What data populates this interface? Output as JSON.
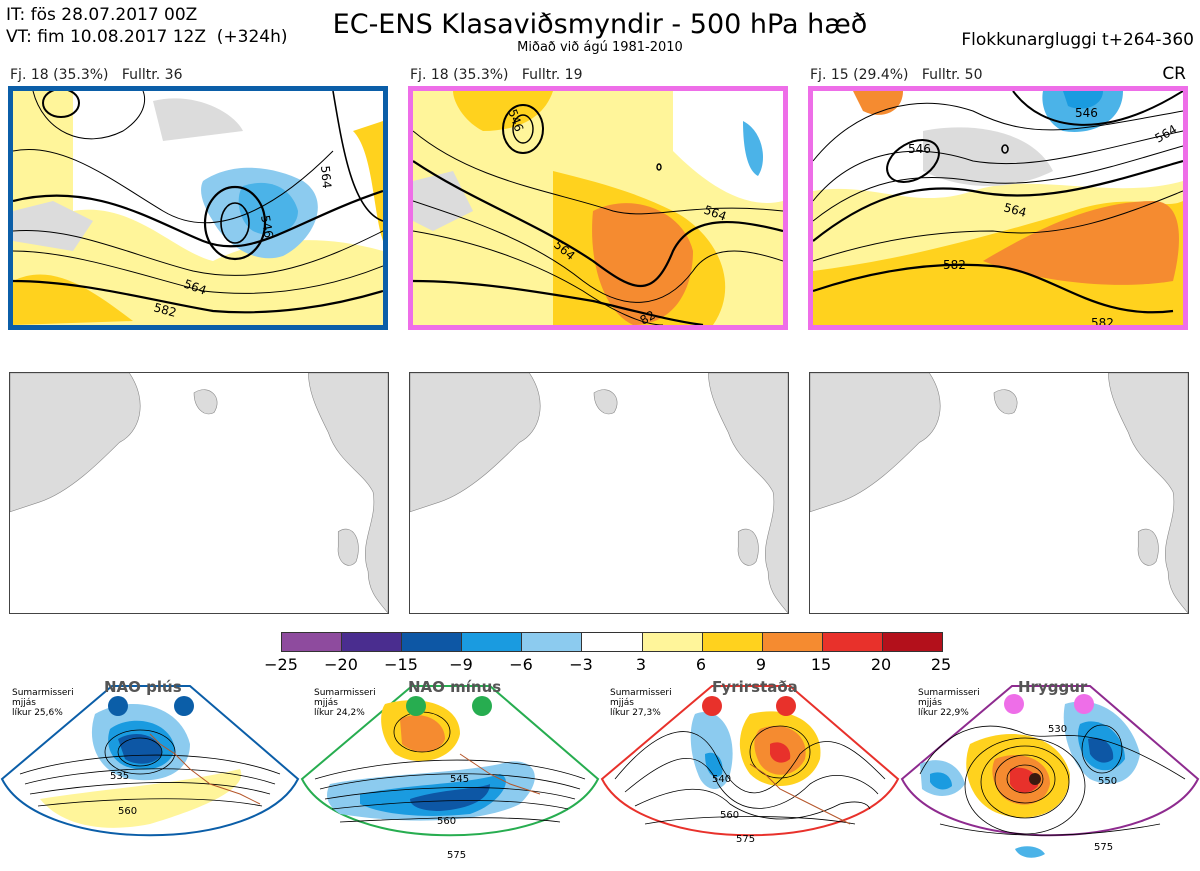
{
  "header": {
    "init_time": "IT: fös 28.07.2017 00Z",
    "valid_time": "VT: fim 10.08.2017 12Z  (+324h)",
    "title": "EC-ENS Klasaviðsmyndir - 500 hPa hæð",
    "subtitle": "Miðað við ágú 1981-2010",
    "window": "Flokkunargluggi t+264-360",
    "cr": "CR"
  },
  "panels": [
    {
      "label": "Fj. 18 (35.3%)   Fulltr. 36",
      "border_color": "#0b5ea8",
      "contours": [
        "546",
        "564",
        "564",
        "582"
      ]
    },
    {
      "label": "Fj. 18 (35.3%)   Fulltr. 19",
      "border_color": "#ee6ee8",
      "contours": [
        "546",
        "564",
        "564",
        "82"
      ]
    },
    {
      "label": "Fj. 15 (29.4%)   Fulltr. 50",
      "border_color": "#ee6ee8",
      "contours": [
        "546",
        "546",
        "564",
        "582",
        "582",
        "564"
      ]
    }
  ],
  "colorbar": {
    "colors": [
      "#8e4b9e",
      "#4a2d8f",
      "#0d57a5",
      "#1a9be0",
      "#8ccbef",
      "#ffffff",
      "#fff59a",
      "#ffd21e",
      "#f58b30",
      "#e8312b",
      "#b3101b"
    ],
    "ticks": [
      "−25",
      "−20",
      "−15",
      "−9",
      "−6",
      "−3",
      "3",
      "6",
      "9",
      "15",
      "20",
      "25"
    ]
  },
  "clusters": [
    {
      "name": "NAO plús",
      "season": "Sumarmisseri\nmjjás\nlíkur 25,6%",
      "color": "#0b5ea8",
      "contours": [
        "535",
        "560"
      ]
    },
    {
      "name": "NAO mínus",
      "season": "Sumarmisseri\nmjjás\nlíkur 24,2%",
      "color": "#27ad50",
      "contours": [
        "545",
        "560",
        "575"
      ]
    },
    {
      "name": "Fyrirstaða",
      "season": "Sumarmisseri\nmjjás\nlíkur 27,3%",
      "color": "#e8312b",
      "contours": [
        "540",
        "560",
        "575"
      ]
    },
    {
      "name": "Hryggur",
      "season": "Sumarmisseri\nmjjás\nlíkur 22,9%",
      "color": "#ee6ee8",
      "contours": [
        "530",
        "550",
        "575"
      ]
    }
  ]
}
